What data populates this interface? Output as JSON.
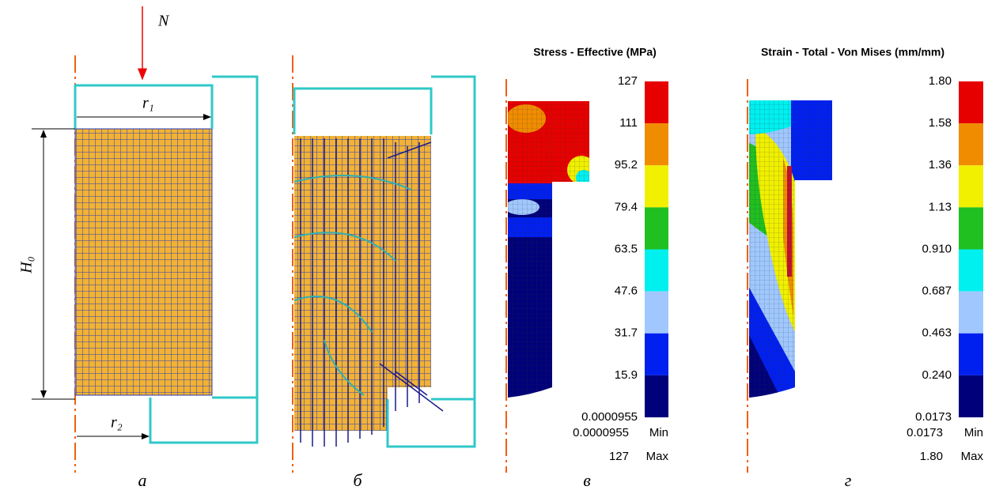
{
  "panels": [
    {
      "letter": "а",
      "force_label": "N",
      "r1_label": "r₁",
      "h_label": "H₀",
      "r2_label": "r₂"
    },
    {
      "letter": "б"
    },
    {
      "letter": "в",
      "legend": {
        "title": "Stress - Effective (MPa)",
        "labels": [
          "127",
          "111",
          "95.2",
          "79.4",
          "63.5",
          "47.6",
          "31.7",
          "15.9",
          "0.0000955"
        ],
        "min_value": "0.0000955",
        "min_word": "Min",
        "max_value": "127",
        "max_word": "Max"
      }
    },
    {
      "letter": "г",
      "legend": {
        "title": "Strain - Total - Von Mises (mm/mm)",
        "labels": [
          "1.80",
          "1.58",
          "1.36",
          "1.13",
          "0.910",
          "0.687",
          "0.463",
          "0.240",
          "0.0173"
        ],
        "min_value": "0.0173",
        "min_word": "Min",
        "max_value": "1.80",
        "max_word": "Max"
      }
    }
  ]
}
